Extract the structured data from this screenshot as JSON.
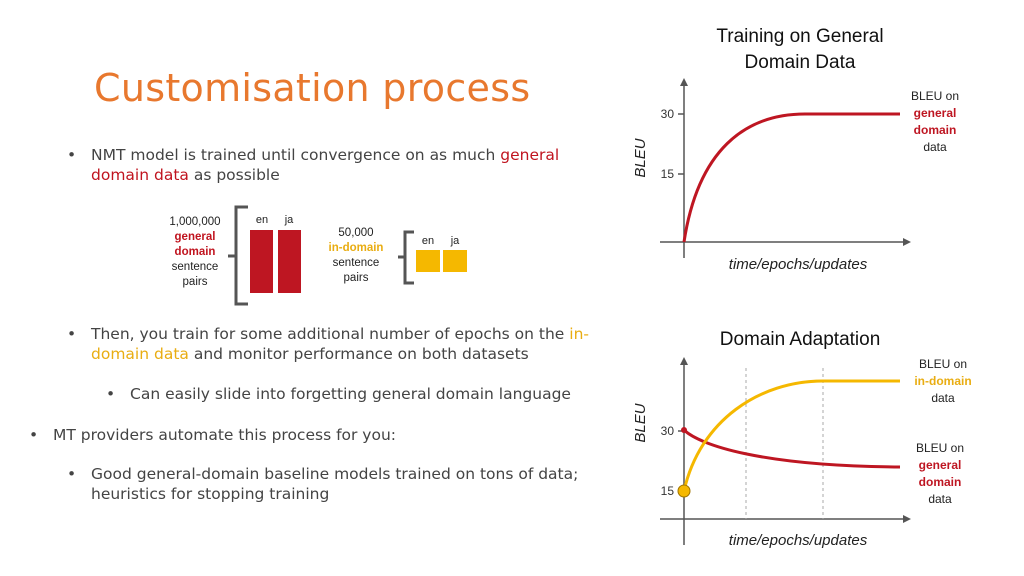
{
  "slide": {
    "title": "Customisation process",
    "bullets": [
      {
        "pre": "NMT model is trained until convergence on as much ",
        "hl1": "general",
        "line2_hl": "domain data",
        "post": " as possible"
      },
      {
        "pre": "Then, you train for some additional number of epochs on the ",
        "hl1": "in-",
        "line2_hl": "domain data",
        "post": " and monitor performance on both datasets"
      },
      {
        "text": "Can easily slide into forgetting general domain language"
      },
      {
        "text": "MT providers automate this process for you:"
      },
      {
        "line1": "Good general-domain baseline models trained on tons of data;",
        "line2": "heuristics for stopping training"
      }
    ],
    "bullet_char": "•"
  },
  "corpus": {
    "general": {
      "count": "1,000,000",
      "word1": "general",
      "word2": "domain",
      "word3": "sentence",
      "word4": "pairs"
    },
    "indomain": {
      "count": "50,000",
      "word1": "in-domain",
      "word2": "sentence",
      "word3": "pairs"
    },
    "lang1": "en",
    "lang2": "ja",
    "colors": {
      "general": "#be1622",
      "indomain": "#f5b800"
    }
  },
  "chart_top": {
    "title_line1": "Training on General",
    "title_line2": "Domain Data",
    "ylabel": "BLEU",
    "xlabel": "time/epochs/updates",
    "yticks": [
      "30",
      "15"
    ],
    "legend": {
      "l1": "BLEU on",
      "l2": "general",
      "l3": "domain",
      "l4": "data"
    }
  },
  "chart_bottom": {
    "title": "Domain Adaptation",
    "ylabel": "BLEU",
    "xlabel": "time/epochs/updates",
    "yticks": [
      "30",
      "15"
    ],
    "legend_in": {
      "l1": "BLEU on",
      "l2": "in-domain",
      "l3": "data"
    },
    "legend_gen": {
      "l1": "BLEU on",
      "l2": "general",
      "l3": "domain",
      "l4": "data"
    }
  }
}
